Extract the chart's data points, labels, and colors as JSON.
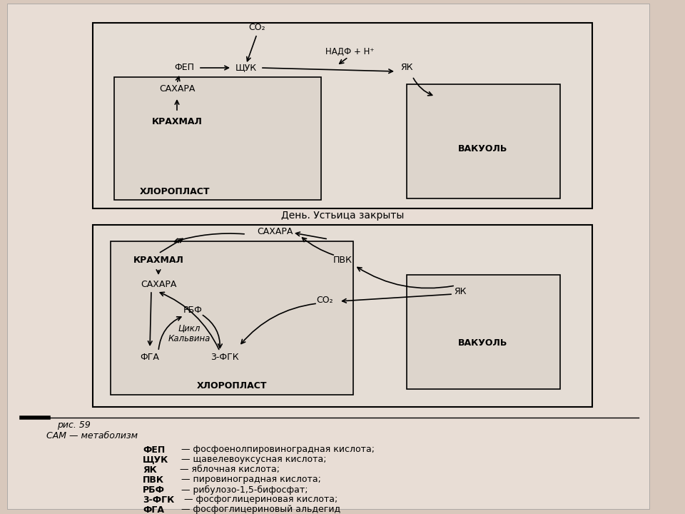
{
  "bg_color": "#d8c8bc",
  "paper_bg": "#e8ddd5",
  "box_inner_bg": "#ddd5cc",
  "box_bg": "#e5ddd5",
  "title_day_closed": "День. Устьица закрыты",
  "fig_caption": "рис. 59",
  "legend_title": "САМ — метаболизм",
  "legend_items": [
    [
      "ФЕП",
      "— фосфоенолпировиноградная кислота;"
    ],
    [
      "ЩУК",
      "— щавелевоуксусная кислота;"
    ],
    [
      "ЯК",
      "— яблочная кислота;"
    ],
    [
      "ПВК",
      "— пировиноградная кислота;"
    ],
    [
      "РБФ",
      "— рибулозо-1,5-бифосфат;"
    ],
    [
      "3-ФГК",
      "— фосфоглицериновая кислота;"
    ],
    [
      "ФГА",
      "— фосфоглицериновый альдегид"
    ]
  ]
}
